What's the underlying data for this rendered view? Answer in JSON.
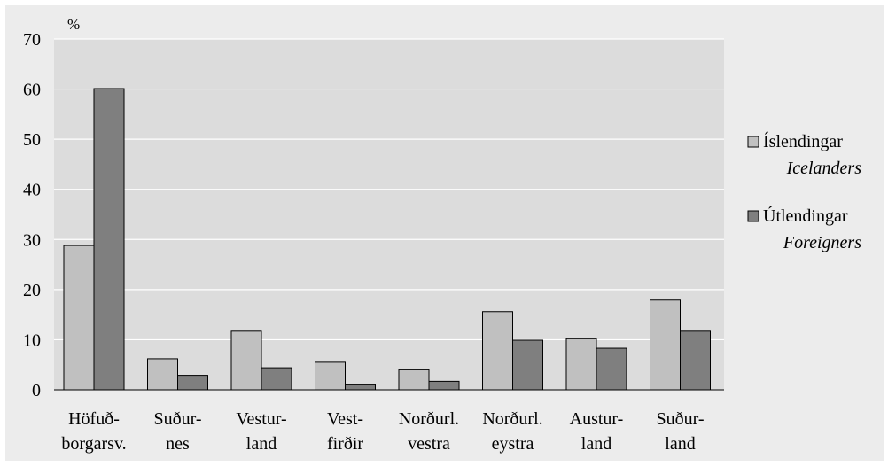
{
  "chart_data": {
    "type": "bar",
    "unit_label": "%",
    "ylim": [
      0,
      70
    ],
    "yticks": [
      "0",
      "10",
      "20",
      "30",
      "40",
      "50",
      "60",
      "70"
    ],
    "grid": true,
    "legend_position": "right",
    "categories": [
      [
        "Höfuð-",
        "borgarsv."
      ],
      [
        "Suður-",
        "nes"
      ],
      [
        "Vestur-",
        "land"
      ],
      [
        "Vest-",
        "firðir"
      ],
      [
        "Norðurl.",
        "vestra"
      ],
      [
        "Norðurl.",
        "eystra"
      ],
      [
        "Austur-",
        "land"
      ],
      [
        "Suður-",
        "land"
      ]
    ],
    "series": [
      {
        "name": "Íslendingar",
        "subname": "Icelanders",
        "color": "#c0c0c0",
        "values": [
          28.8,
          6.2,
          11.7,
          5.5,
          4.0,
          15.6,
          10.2,
          17.9
        ]
      },
      {
        "name": "Útlendingar",
        "subname": "Foreigners",
        "color": "#7f7f7f",
        "values": [
          60.1,
          2.9,
          4.4,
          1.0,
          1.7,
          9.9,
          8.3,
          11.7
        ]
      }
    ]
  }
}
